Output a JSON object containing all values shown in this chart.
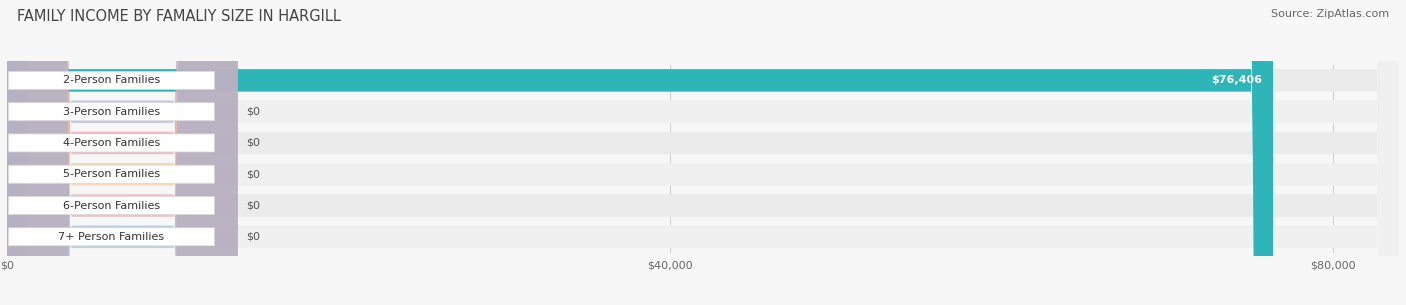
{
  "title": "FAMILY INCOME BY FAMALIY SIZE IN HARGILL",
  "source": "Source: ZipAtlas.com",
  "categories": [
    "2-Person Families",
    "3-Person Families",
    "4-Person Families",
    "5-Person Families",
    "6-Person Families",
    "7+ Person Families"
  ],
  "values": [
    76406,
    0,
    0,
    0,
    0,
    0
  ],
  "bar_colors": [
    "#2db5b8",
    "#a8a8d8",
    "#f09aaa",
    "#f5c98a",
    "#f0a0a8",
    "#90b8d8"
  ],
  "xlim": [
    0,
    84000
  ],
  "xticks": [
    0,
    40000,
    80000
  ],
  "xticklabels": [
    "$0",
    "$40,000",
    "$80,000"
  ],
  "bar_height": 0.72,
  "bg_color": "#f7f7f7",
  "row_bg_colors": [
    "#ebebeb",
    "#f0f0f0",
    "#ebebeb",
    "#f0f0f0",
    "#ebebeb",
    "#f0f0f0"
  ],
  "title_fontsize": 10.5,
  "source_fontsize": 8,
  "label_fontsize": 8,
  "value_fontsize": 8
}
